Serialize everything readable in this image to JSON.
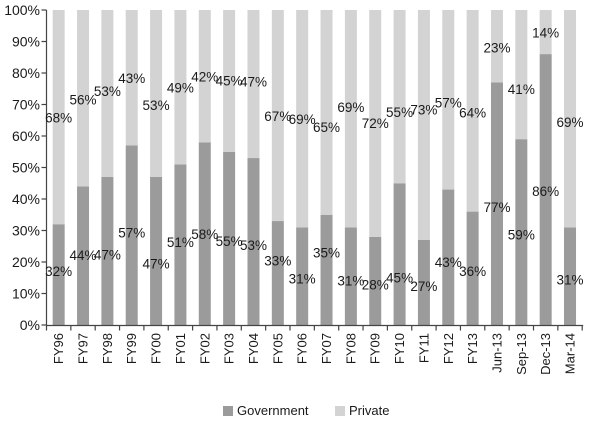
{
  "chart_data": {
    "type": "bar",
    "stacked": true,
    "orientation": "vertical",
    "categories": [
      "FY96",
      "FY97",
      "FY98",
      "FY99",
      "FY00",
      "FY01",
      "FY02",
      "FY03",
      "FY04",
      "FY05",
      "FY06",
      "FY07",
      "FY08",
      "FY09",
      "FY10",
      "FY11",
      "FY12",
      "FY13",
      "Jun-13",
      "Sep-13",
      "Dec-13",
      "Mar-14"
    ],
    "series": [
      {
        "name": "Government",
        "color": "#9b9b9b",
        "values": [
          32,
          44,
          47,
          57,
          47,
          51,
          58,
          55,
          53,
          33,
          31,
          35,
          31,
          28,
          45,
          27,
          43,
          36,
          77,
          59,
          86,
          31
        ]
      },
      {
        "name": "Private",
        "color": "#d3d3d3",
        "values": [
          68,
          56,
          53,
          43,
          53,
          49,
          42,
          45,
          47,
          67,
          69,
          65,
          69,
          72,
          55,
          73,
          57,
          64,
          23,
          41,
          14,
          69
        ]
      }
    ],
    "data_label_suffix": "%",
    "y_axis": {
      "min": 0,
      "max": 100,
      "tick_step": 10,
      "tick_labels": [
        "0%",
        "10%",
        "20%",
        "30%",
        "40%",
        "50%",
        "60%",
        "70%",
        "80%",
        "90%",
        "100%"
      ]
    },
    "grid": false,
    "legend_position": "bottom",
    "colors": {
      "axis": "#444444",
      "label_text": "#1a1a1a"
    }
  }
}
